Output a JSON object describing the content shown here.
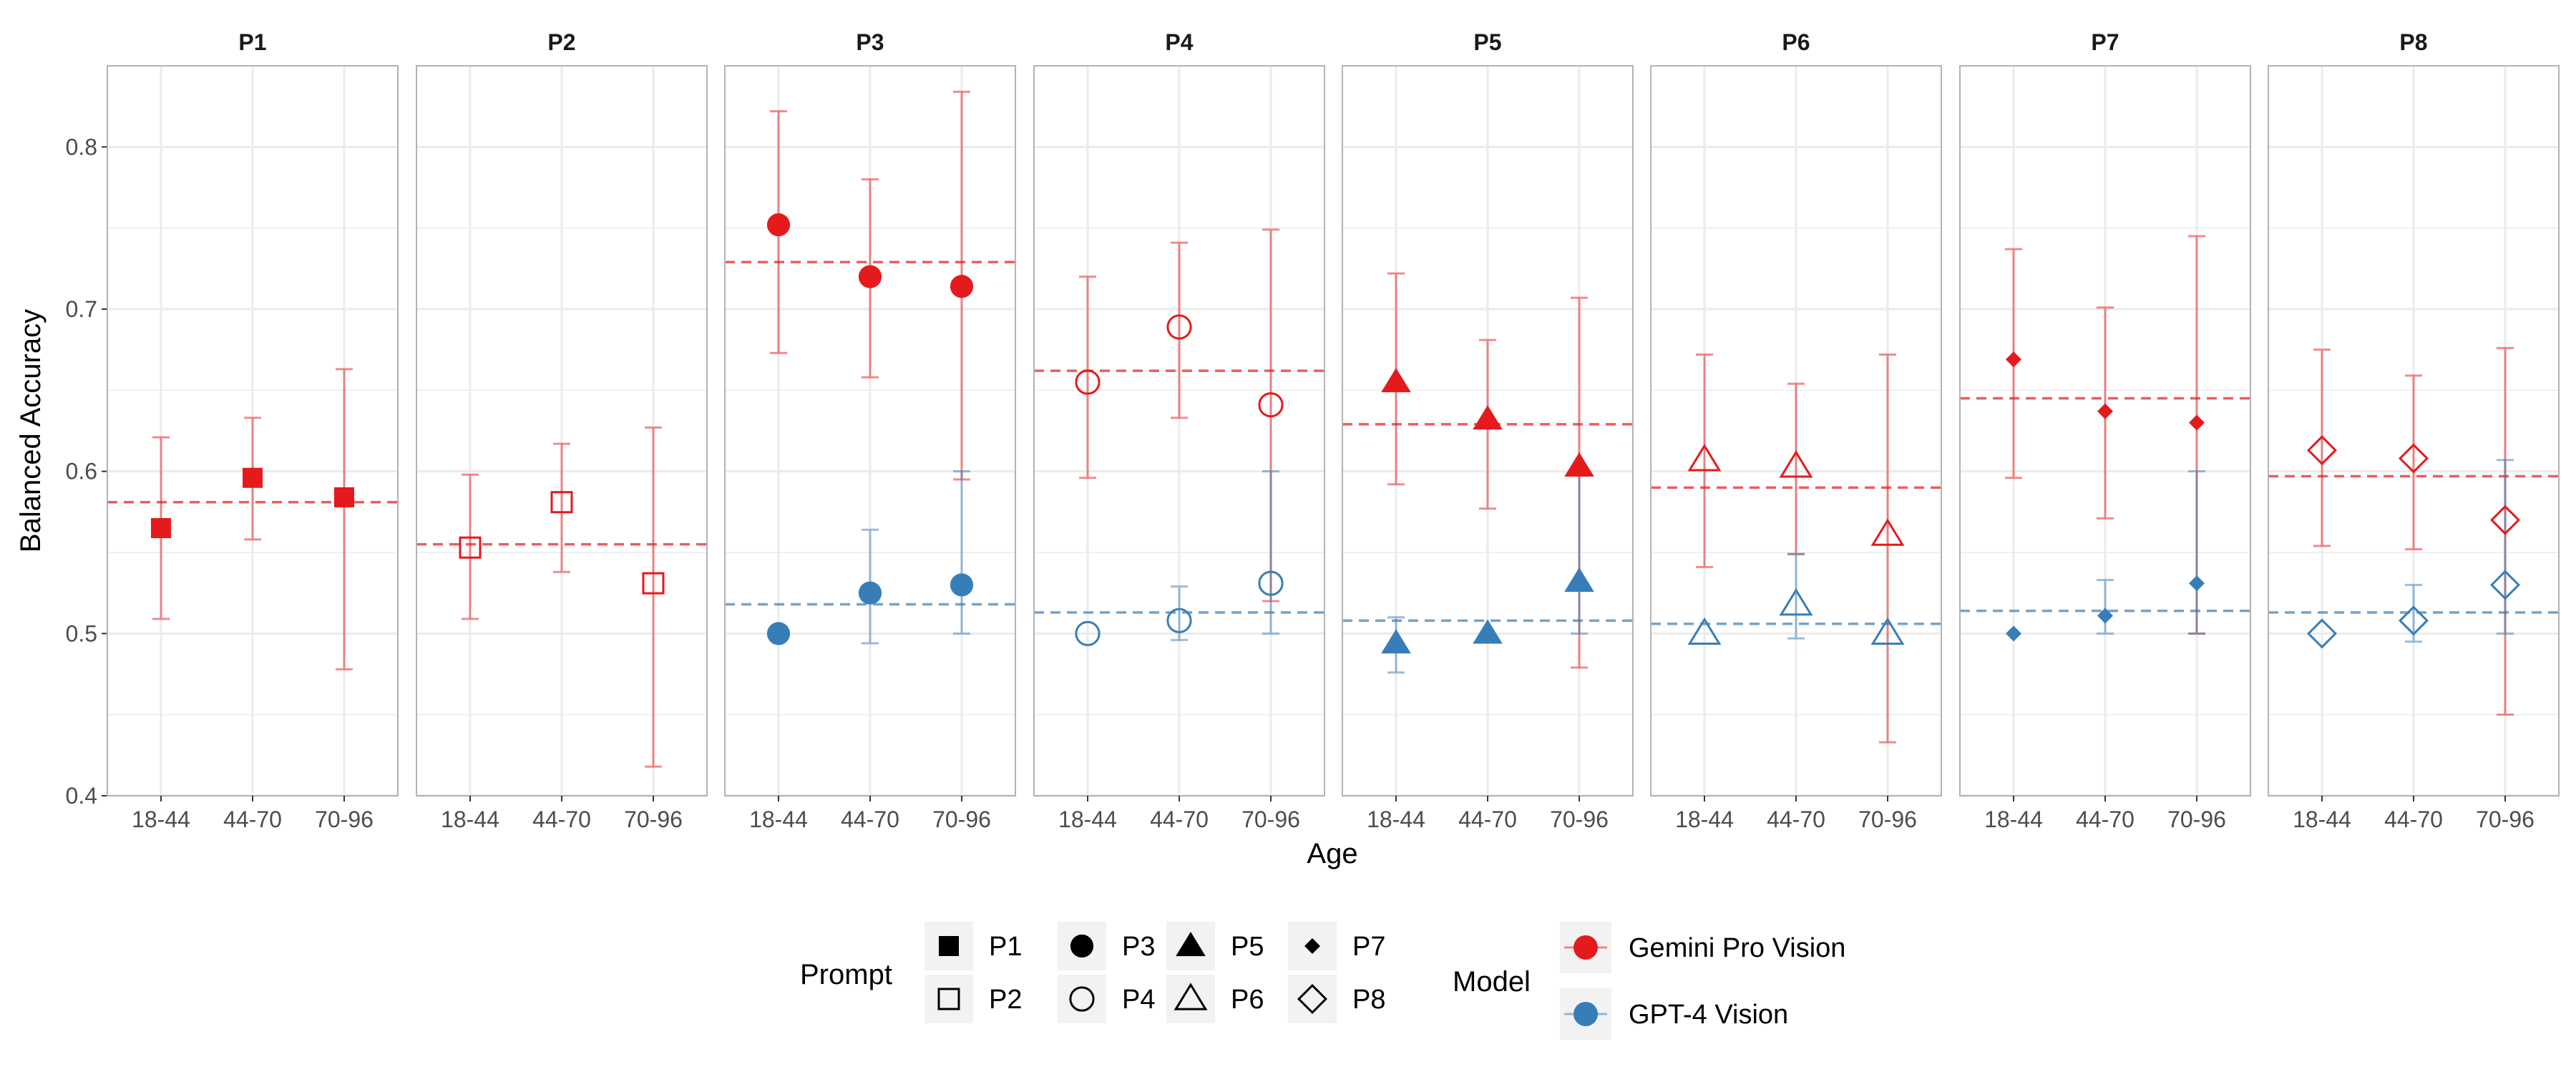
{
  "chart_data": {
    "type": "scatter",
    "ylabel": "Balanced Accuracy",
    "xlabel": "Age",
    "ylim": [
      0.4,
      0.85
    ],
    "yticks": [
      0.4,
      0.5,
      0.6,
      0.7,
      0.8
    ],
    "ytick_labels": [
      "0.4",
      "0.5",
      "0.6",
      "0.7",
      "0.8"
    ],
    "categories": [
      "18-44",
      "44-70",
      "70-96"
    ],
    "grid": true,
    "legend_placement": "bottom",
    "legend": {
      "prompt_title": "Prompt",
      "model_title": "Model",
      "prompts": [
        {
          "label": "P1",
          "shape": "square",
          "filled": true
        },
        {
          "label": "P2",
          "shape": "square",
          "filled": false
        },
        {
          "label": "P3",
          "shape": "circle",
          "filled": true
        },
        {
          "label": "P4",
          "shape": "circle",
          "filled": false
        },
        {
          "label": "P5",
          "shape": "triangle",
          "filled": true
        },
        {
          "label": "P6",
          "shape": "triangle",
          "filled": false
        },
        {
          "label": "P7",
          "shape": "diamond",
          "filled": true
        },
        {
          "label": "P8",
          "shape": "diamond",
          "filled": false
        }
      ],
      "models": [
        {
          "label": "Gemini Pro Vision",
          "color": "#e41a1c"
        },
        {
          "label": "GPT-4 Vision",
          "color": "#377eb8"
        }
      ]
    },
    "colors": {
      "gemini": "#e41a1c",
      "gpt": "#377eb8"
    },
    "panels": [
      {
        "title": "P1",
        "shape": "square",
        "filled": true,
        "gemini": {
          "mean": 0.581,
          "points": [
            {
              "x": "18-44",
              "y": 0.565,
              "lo": 0.509,
              "hi": 0.621
            },
            {
              "x": "44-70",
              "y": 0.596,
              "lo": 0.558,
              "hi": 0.633
            },
            {
              "x": "70-96",
              "y": 0.584,
              "lo": 0.478,
              "hi": 0.663
            }
          ]
        },
        "gpt": null
      },
      {
        "title": "P2",
        "shape": "square",
        "filled": false,
        "gemini": {
          "mean": 0.555,
          "points": [
            {
              "x": "18-44",
              "y": 0.553,
              "lo": 0.509,
              "hi": 0.598
            },
            {
              "x": "44-70",
              "y": 0.581,
              "lo": 0.538,
              "hi": 0.617
            },
            {
              "x": "70-96",
              "y": 0.531,
              "lo": 0.418,
              "hi": 0.627
            }
          ]
        },
        "gpt": null
      },
      {
        "title": "P3",
        "shape": "circle",
        "filled": true,
        "gemini": {
          "mean": 0.729,
          "points": [
            {
              "x": "18-44",
              "y": 0.752,
              "lo": 0.673,
              "hi": 0.822
            },
            {
              "x": "44-70",
              "y": 0.72,
              "lo": 0.658,
              "hi": 0.78
            },
            {
              "x": "70-96",
              "y": 0.714,
              "lo": 0.595,
              "hi": 0.834
            }
          ]
        },
        "gpt": {
          "mean": 0.518,
          "points": [
            {
              "x": "18-44",
              "y": 0.5,
              "lo": 0.5,
              "hi": 0.5
            },
            {
              "x": "44-70",
              "y": 0.525,
              "lo": 0.494,
              "hi": 0.564
            },
            {
              "x": "70-96",
              "y": 0.53,
              "lo": 0.5,
              "hi": 0.6
            }
          ]
        }
      },
      {
        "title": "P4",
        "shape": "circle",
        "filled": false,
        "gemini": {
          "mean": 0.662,
          "points": [
            {
              "x": "18-44",
              "y": 0.655,
              "lo": 0.596,
              "hi": 0.72
            },
            {
              "x": "44-70",
              "y": 0.689,
              "lo": 0.633,
              "hi": 0.741
            },
            {
              "x": "70-96",
              "y": 0.641,
              "lo": 0.52,
              "hi": 0.749
            }
          ]
        },
        "gpt": {
          "mean": 0.513,
          "points": [
            {
              "x": "18-44",
              "y": 0.5,
              "lo": 0.5,
              "hi": 0.5
            },
            {
              "x": "44-70",
              "y": 0.508,
              "lo": 0.496,
              "hi": 0.529
            },
            {
              "x": "70-96",
              "y": 0.531,
              "lo": 0.5,
              "hi": 0.6
            }
          ]
        }
      },
      {
        "title": "P5",
        "shape": "triangle",
        "filled": true,
        "gemini": {
          "mean": 0.629,
          "points": [
            {
              "x": "18-44",
              "y": 0.655,
              "lo": 0.592,
              "hi": 0.722
            },
            {
              "x": "44-70",
              "y": 0.632,
              "lo": 0.577,
              "hi": 0.681
            },
            {
              "x": "70-96",
              "y": 0.603,
              "lo": 0.479,
              "hi": 0.707
            }
          ]
        },
        "gpt": {
          "mean": 0.508,
          "points": [
            {
              "x": "18-44",
              "y": 0.494,
              "lo": 0.476,
              "hi": 0.51
            },
            {
              "x": "44-70",
              "y": 0.5,
              "lo": 0.5,
              "hi": 0.5
            },
            {
              "x": "70-96",
              "y": 0.532,
              "lo": 0.5,
              "hi": 0.6
            }
          ]
        }
      },
      {
        "title": "P6",
        "shape": "triangle",
        "filled": false,
        "gemini": {
          "mean": 0.59,
          "points": [
            {
              "x": "18-44",
              "y": 0.607,
              "lo": 0.541,
              "hi": 0.672
            },
            {
              "x": "44-70",
              "y": 0.603,
              "lo": 0.549,
              "hi": 0.654
            },
            {
              "x": "70-96",
              "y": 0.561,
              "lo": 0.433,
              "hi": 0.672
            }
          ]
        },
        "gpt": {
          "mean": 0.506,
          "points": [
            {
              "x": "18-44",
              "y": 0.5,
              "lo": 0.5,
              "hi": 0.5
            },
            {
              "x": "44-70",
              "y": 0.518,
              "lo": 0.497,
              "hi": 0.549
            },
            {
              "x": "70-96",
              "y": 0.5,
              "lo": 0.5,
              "hi": 0.5
            }
          ]
        }
      },
      {
        "title": "P7",
        "shape": "diamond",
        "filled": true,
        "gemini": {
          "mean": 0.645,
          "points": [
            {
              "x": "18-44",
              "y": 0.669,
              "lo": 0.596,
              "hi": 0.737
            },
            {
              "x": "44-70",
              "y": 0.637,
              "lo": 0.571,
              "hi": 0.701
            },
            {
              "x": "70-96",
              "y": 0.63,
              "lo": 0.5,
              "hi": 0.745
            }
          ]
        },
        "gpt": {
          "mean": 0.514,
          "points": [
            {
              "x": "18-44",
              "y": 0.5,
              "lo": 0.5,
              "hi": 0.5
            },
            {
              "x": "44-70",
              "y": 0.511,
              "lo": 0.5,
              "hi": 0.533
            },
            {
              "x": "70-96",
              "y": 0.531,
              "lo": 0.5,
              "hi": 0.6
            }
          ]
        }
      },
      {
        "title": "P8",
        "shape": "diamond",
        "filled": false,
        "gemini": {
          "mean": 0.597,
          "points": [
            {
              "x": "18-44",
              "y": 0.613,
              "lo": 0.554,
              "hi": 0.675
            },
            {
              "x": "44-70",
              "y": 0.608,
              "lo": 0.552,
              "hi": 0.659
            },
            {
              "x": "70-96",
              "y": 0.57,
              "lo": 0.45,
              "hi": 0.676
            }
          ]
        },
        "gpt": {
          "mean": 0.513,
          "points": [
            {
              "x": "18-44",
              "y": 0.5,
              "lo": 0.5,
              "hi": 0.5
            },
            {
              "x": "44-70",
              "y": 0.508,
              "lo": 0.495,
              "hi": 0.53
            },
            {
              "x": "70-96",
              "y": 0.53,
              "lo": 0.5,
              "hi": 0.607
            }
          ]
        }
      }
    ]
  }
}
